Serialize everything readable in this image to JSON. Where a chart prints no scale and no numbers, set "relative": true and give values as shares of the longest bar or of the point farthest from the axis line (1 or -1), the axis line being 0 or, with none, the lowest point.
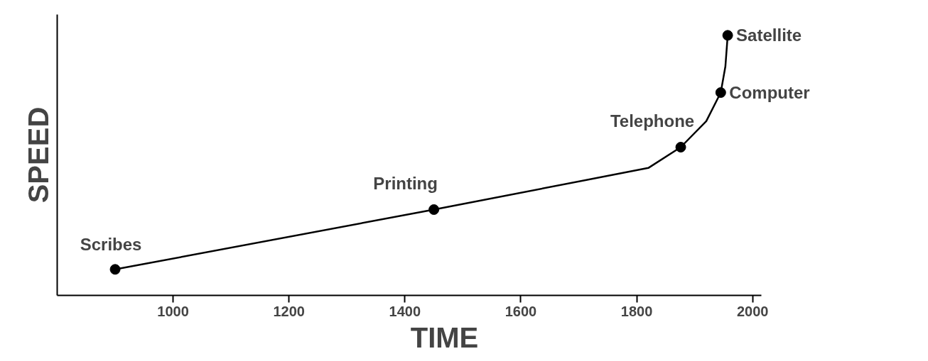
{
  "chart_data": {
    "type": "line",
    "relative": true,
    "xlabel": "TIME",
    "ylabel": "SPEED",
    "xlim": [
      800,
      2015
    ],
    "xticks": [
      1000,
      1200,
      1400,
      1600,
      1800,
      2000
    ],
    "grid": false,
    "series": [
      {
        "color": "#000000",
        "marker": "none",
        "x": [
          900,
          1450,
          1820,
          1876,
          1920,
          1945,
          1953,
          1957
        ],
        "values": [
          0.1,
          0.33,
          0.49,
          0.57,
          0.67,
          0.78,
          0.88,
          1.0
        ]
      },
      {
        "type": "scatter",
        "color": "#000000",
        "marker": "circle",
        "x": [
          900,
          1450,
          1876,
          1945,
          1957
        ],
        "values": [
          0.1,
          0.33,
          0.57,
          0.78,
          1.0
        ]
      }
    ],
    "annotations": [
      {
        "text": "Scribes",
        "x": 900,
        "y": 0.1
      },
      {
        "text": "Printing",
        "x": 1450,
        "y": 0.33
      },
      {
        "text": "Telephone",
        "x": 1876,
        "y": 0.57
      },
      {
        "text": "Computer",
        "x": 1945,
        "y": 0.78
      },
      {
        "text": "Satellite",
        "x": 1957,
        "y": 1.0
      }
    ]
  }
}
